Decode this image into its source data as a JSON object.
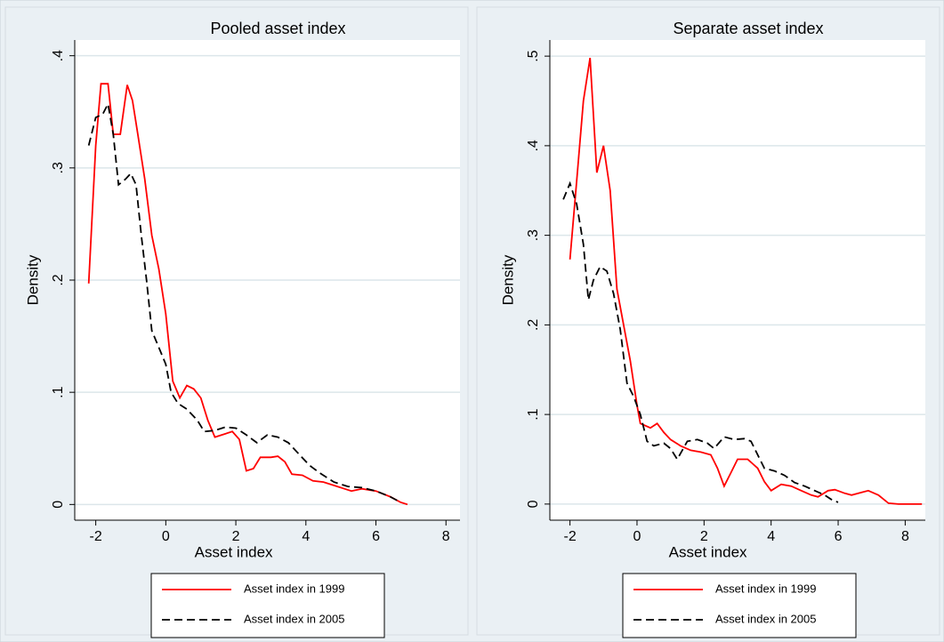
{
  "chart_data": [
    {
      "type": "line",
      "title": "Pooled asset index",
      "x_label": "Asset index",
      "y_label": "Density",
      "xlim": [
        -2.6,
        8.4
      ],
      "ylim": [
        -0.014,
        0.414
      ],
      "xticks": [
        -2,
        0,
        2,
        4,
        6,
        8
      ],
      "yticks": [
        0,
        {
          "value": 0.1,
          "label": ".1"
        },
        {
          "value": 0.2,
          "label": ".2"
        },
        {
          "value": 0.3,
          "label": ".3"
        },
        {
          "value": 0.4,
          "label": ".4"
        }
      ],
      "grid": true,
      "legend": "bottom",
      "series": [
        {
          "name": "Asset index in 1999",
          "color": "#ff0000",
          "style": "solid",
          "x": [
            -2.2,
            -2.0,
            -1.85,
            -1.65,
            -1.5,
            -1.3,
            -1.1,
            -0.95,
            -0.8,
            -0.6,
            -0.4,
            -0.2,
            0,
            0.2,
            0.4,
            0.6,
            0.8,
            1.0,
            1.2,
            1.4,
            1.6,
            1.9,
            2.1,
            2.3,
            2.5,
            2.7,
            3.0,
            3.2,
            3.4,
            3.6,
            3.9,
            4.2,
            4.5,
            4.8,
            5.1,
            5.3,
            5.6,
            6.0,
            6.4,
            6.7,
            6.9
          ],
          "values": [
            0.197,
            0.32,
            0.375,
            0.375,
            0.33,
            0.33,
            0.374,
            0.36,
            0.33,
            0.29,
            0.24,
            0.21,
            0.17,
            0.11,
            0.095,
            0.106,
            0.103,
            0.095,
            0.075,
            0.06,
            0.062,
            0.065,
            0.058,
            0.03,
            0.032,
            0.042,
            0.042,
            0.043,
            0.038,
            0.027,
            0.026,
            0.021,
            0.02,
            0.017,
            0.014,
            0.012,
            0.014,
            0.012,
            0.007,
            0.002,
            0
          ]
        },
        {
          "name": "Asset index in 2005",
          "color": "#000000",
          "style": "dashed",
          "x": [
            -2.2,
            -2.0,
            -1.8,
            -1.65,
            -1.5,
            -1.35,
            -1.15,
            -1.0,
            -0.85,
            -0.7,
            -0.55,
            -0.4,
            -0.2,
            0,
            0.15,
            0.35,
            0.6,
            0.9,
            1.1,
            1.4,
            1.7,
            2.0,
            2.3,
            2.6,
            2.9,
            3.2,
            3.5,
            3.8,
            4.1,
            4.4,
            4.8,
            5.2,
            5.6,
            6.0,
            6.4,
            6.7
          ],
          "values": [
            0.32,
            0.345,
            0.348,
            0.357,
            0.33,
            0.285,
            0.29,
            0.295,
            0.285,
            0.24,
            0.2,
            0.155,
            0.14,
            0.125,
            0.1,
            0.09,
            0.085,
            0.075,
            0.065,
            0.066,
            0.069,
            0.068,
            0.062,
            0.055,
            0.062,
            0.06,
            0.055,
            0.045,
            0.035,
            0.028,
            0.02,
            0.016,
            0.015,
            0.012,
            0.007,
            0.002
          ]
        }
      ]
    },
    {
      "type": "line",
      "title": "Separate asset index",
      "x_label": "Asset index",
      "y_label": "Density",
      "xlim": [
        -2.6,
        8.6
      ],
      "ylim": [
        -0.018,
        0.518
      ],
      "xticks": [
        -2,
        0,
        2,
        4,
        6,
        8
      ],
      "yticks": [
        0,
        {
          "value": 0.1,
          "label": ".1"
        },
        {
          "value": 0.2,
          "label": ".2"
        },
        {
          "value": 0.3,
          "label": ".3"
        },
        {
          "value": 0.4,
          "label": ".4"
        },
        {
          "value": 0.5,
          "label": ".5"
        }
      ],
      "grid": true,
      "legend": "bottom",
      "series": [
        {
          "name": "Asset index in 1999",
          "color": "#ff0000",
          "style": "solid",
          "x": [
            -2.0,
            -1.8,
            -1.6,
            -1.4,
            -1.2,
            -1.0,
            -0.8,
            -0.6,
            -0.4,
            -0.2,
            0,
            0.1,
            0.4,
            0.6,
            0.8,
            1.0,
            1.3,
            1.6,
            1.9,
            2.2,
            2.4,
            2.6,
            2.8,
            3.0,
            3.3,
            3.6,
            3.8,
            4.0,
            4.3,
            4.6,
            4.9,
            5.2,
            5.4,
            5.7,
            5.9,
            6.2,
            6.4,
            6.7,
            6.9,
            7.2,
            7.5,
            7.8,
            8.5
          ],
          "values": [
            0.273,
            0.36,
            0.45,
            0.498,
            0.37,
            0.4,
            0.35,
            0.24,
            0.2,
            0.16,
            0.11,
            0.09,
            0.085,
            0.09,
            0.08,
            0.072,
            0.065,
            0.06,
            0.058,
            0.055,
            0.04,
            0.02,
            0.035,
            0.05,
            0.05,
            0.04,
            0.025,
            0.015,
            0.022,
            0.02,
            0.015,
            0.01,
            0.008,
            0.015,
            0.016,
            0.012,
            0.01,
            0.013,
            0.015,
            0.01,
            0.001,
            0,
            0
          ]
        },
        {
          "name": "Asset index in 2005",
          "color": "#000000",
          "style": "dashed",
          "x": [
            -2.2,
            -2.0,
            -1.8,
            -1.6,
            -1.45,
            -1.3,
            -1.1,
            -0.9,
            -0.7,
            -0.5,
            -0.3,
            -0.1,
            0.1,
            0.3,
            0.5,
            0.8,
            1.0,
            1.2,
            1.5,
            1.8,
            2.1,
            2.3,
            2.6,
            2.9,
            3.2,
            3.4,
            3.6,
            3.8,
            4.1,
            4.4,
            4.7,
            5.0,
            5.3,
            5.6,
            5.8,
            6.0
          ],
          "values": [
            0.34,
            0.358,
            0.335,
            0.29,
            0.228,
            0.25,
            0.265,
            0.26,
            0.235,
            0.195,
            0.135,
            0.12,
            0.1,
            0.07,
            0.065,
            0.068,
            0.062,
            0.05,
            0.07,
            0.072,
            0.068,
            0.062,
            0.075,
            0.072,
            0.073,
            0.07,
            0.055,
            0.04,
            0.037,
            0.032,
            0.024,
            0.02,
            0.015,
            0.01,
            0.005,
            0.002
          ]
        }
      ]
    }
  ]
}
